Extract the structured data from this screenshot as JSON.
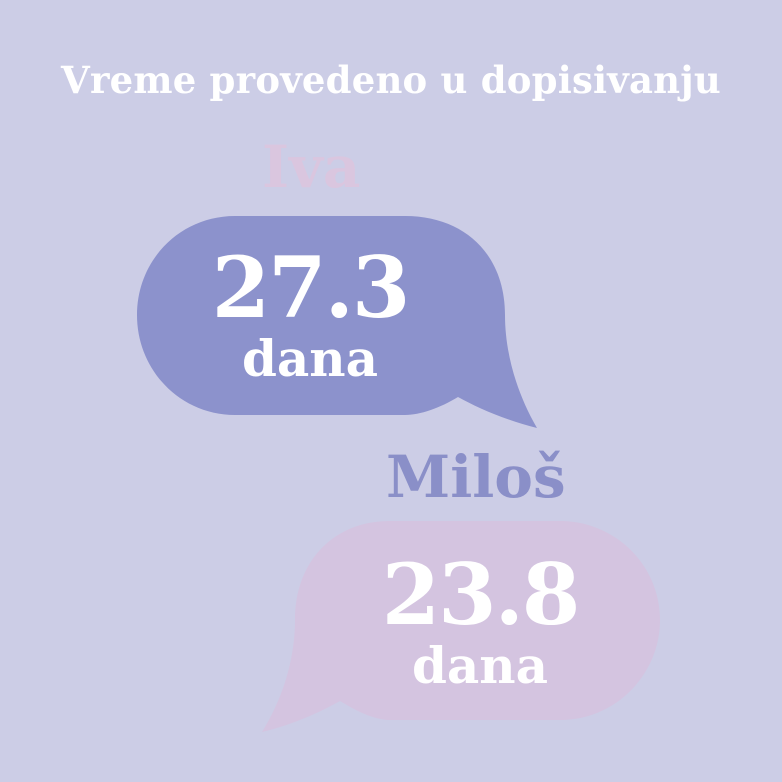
{
  "title": "Vreme provedeno u dopisivanju",
  "people": [
    {
      "name": "Iva",
      "value": "27.3",
      "unit": "dana"
    },
    {
      "name": "Miloš",
      "value": "23.8",
      "unit": "dana"
    }
  ],
  "colors": {
    "background": "#cccde6",
    "iva_bubble": "#8c92cc",
    "iva_name": "#dac6df",
    "milos_bubble": "#d4c4e0",
    "milos_name": "#8a8fc8",
    "text": "#ffffff"
  }
}
